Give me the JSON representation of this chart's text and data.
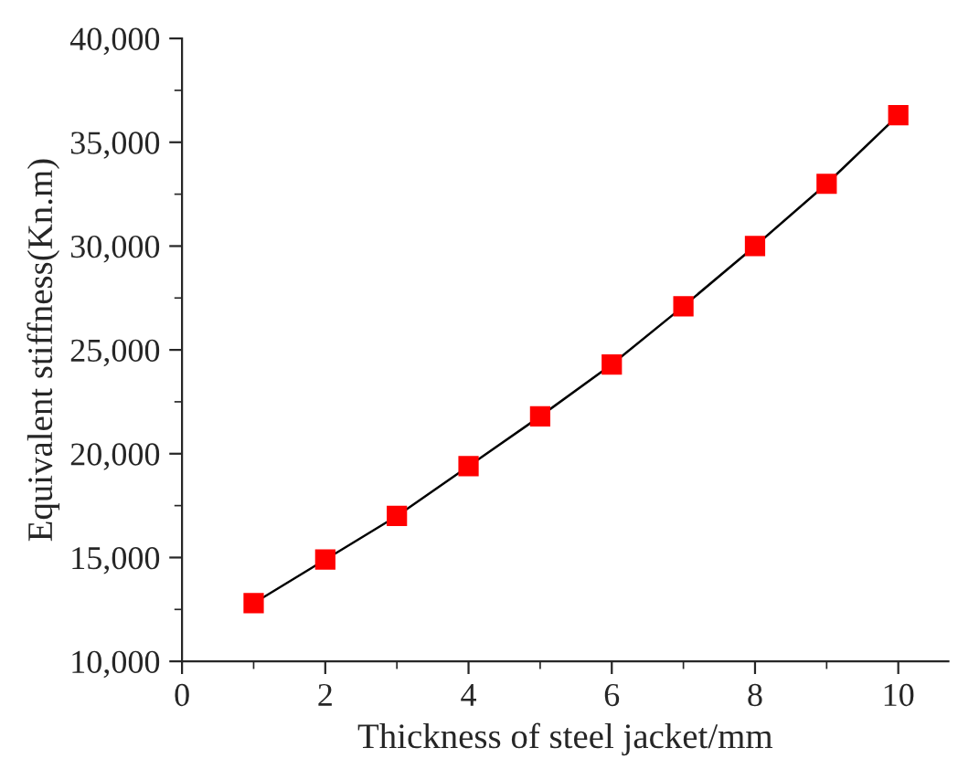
{
  "chart_data": {
    "type": "line",
    "xlabel": "Thickness of steel jacket/mm",
    "ylabel": "Equivalent stiffness(Kn.m)",
    "x": [
      1,
      2,
      3,
      4,
      5,
      6,
      7,
      8,
      9,
      10
    ],
    "series": [
      {
        "color": "#ff0000",
        "values": [
          12800,
          14900,
          17000,
          19400,
          21800,
          24300,
          27100,
          30000,
          33000,
          36300
        ]
      }
    ],
    "xlim": [
      0,
      10.7
    ],
    "xticks": [
      0,
      2,
      4,
      6,
      8,
      10
    ],
    "ylim": [
      10000,
      40000
    ],
    "yticks": [
      {
        "value": 10000,
        "label": "10,000"
      },
      {
        "value": 15000,
        "label": "15,000"
      },
      {
        "value": 20000,
        "label": "20,000"
      },
      {
        "value": 25000,
        "label": "25,000"
      },
      {
        "value": 30000,
        "label": "30,000"
      },
      {
        "value": 35000,
        "label": "35,000"
      },
      {
        "value": 40000,
        "label": "40,000"
      }
    ],
    "marker": "square",
    "line_style": "solid",
    "grid": false,
    "legend": false
  }
}
